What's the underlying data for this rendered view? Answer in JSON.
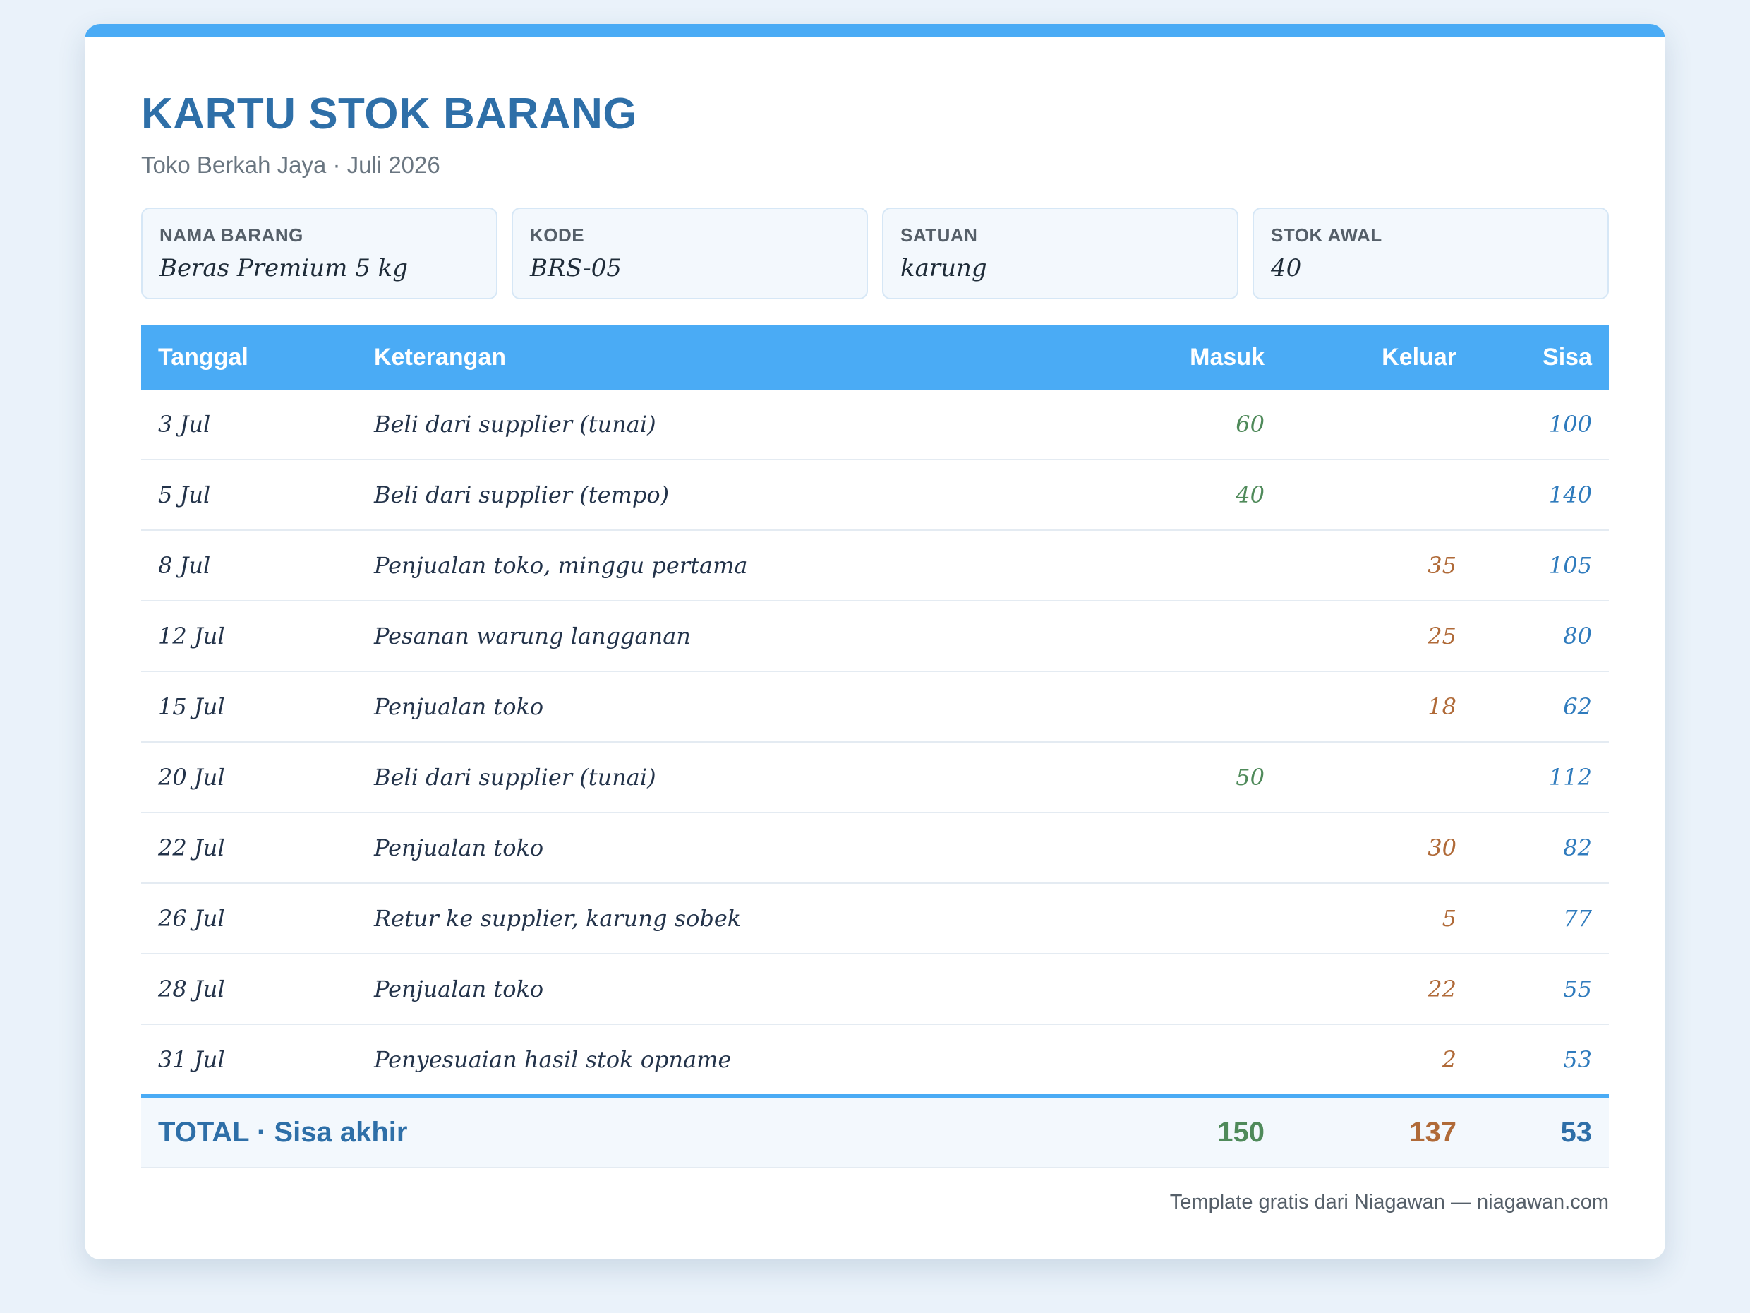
{
  "header": {
    "title": "KARTU STOK BARANG",
    "subtitle": "Toko Berkah Jaya · Juli 2026"
  },
  "info": [
    {
      "label": "NAMA BARANG",
      "value": "Beras Premium 5 kg"
    },
    {
      "label": "KODE",
      "value": "BRS-05"
    },
    {
      "label": "SATUAN",
      "value": "karung"
    },
    {
      "label": "STOK AWAL",
      "value": "40"
    }
  ],
  "table": {
    "columns": {
      "tanggal": "Tanggal",
      "keterangan": "Keterangan",
      "masuk": "Masuk",
      "keluar": "Keluar",
      "sisa": "Sisa"
    },
    "rows": [
      {
        "tanggal": "3 Jul",
        "keterangan": "Beli dari supplier (tunai)",
        "masuk": "60",
        "keluar": "",
        "sisa": "100"
      },
      {
        "tanggal": "5 Jul",
        "keterangan": "Beli dari supplier (tempo)",
        "masuk": "40",
        "keluar": "",
        "sisa": "140"
      },
      {
        "tanggal": "8 Jul",
        "keterangan": "Penjualan toko, minggu pertama",
        "masuk": "",
        "keluar": "35",
        "sisa": "105"
      },
      {
        "tanggal": "12 Jul",
        "keterangan": "Pesanan warung langganan",
        "masuk": "",
        "keluar": "25",
        "sisa": "80"
      },
      {
        "tanggal": "15 Jul",
        "keterangan": "Penjualan toko",
        "masuk": "",
        "keluar": "18",
        "sisa": "62"
      },
      {
        "tanggal": "20 Jul",
        "keterangan": "Beli dari supplier (tunai)",
        "masuk": "50",
        "keluar": "",
        "sisa": "112"
      },
      {
        "tanggal": "22 Jul",
        "keterangan": "Penjualan toko",
        "masuk": "",
        "keluar": "30",
        "sisa": "82"
      },
      {
        "tanggal": "26 Jul",
        "keterangan": "Retur ke supplier, karung sobek",
        "masuk": "",
        "keluar": "5",
        "sisa": "77"
      },
      {
        "tanggal": "28 Jul",
        "keterangan": "Penjualan toko",
        "masuk": "",
        "keluar": "22",
        "sisa": "55"
      },
      {
        "tanggal": "31 Jul",
        "keterangan": "Penyesuaian hasil stok opname",
        "masuk": "",
        "keluar": "2",
        "sisa": "53"
      }
    ],
    "total": {
      "label": "TOTAL · Sisa akhir",
      "masuk": "150",
      "keluar": "137",
      "sisa": "53"
    }
  },
  "footer": {
    "text": "Template gratis dari Niagawan — niagawan.com"
  },
  "colors": {
    "accent": "#4aabf5",
    "title": "#2e6fa8",
    "masuk": "#4f8a5a",
    "keluar": "#b06a38",
    "sisa": "#2f7bbd"
  }
}
